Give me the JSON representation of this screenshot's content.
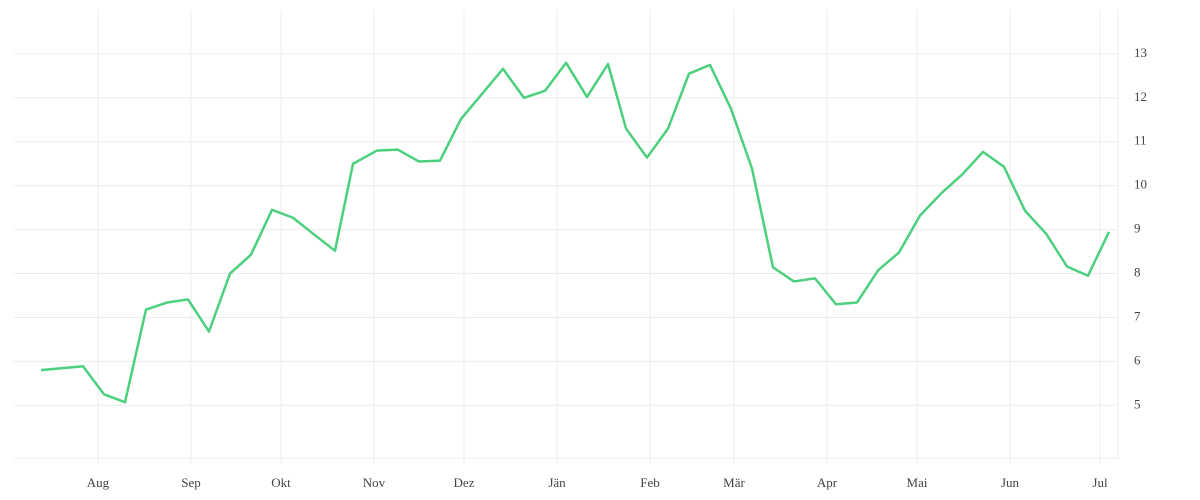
{
  "chart_data": {
    "type": "line",
    "x": [
      12,
      26,
      33,
      40,
      47,
      54,
      61,
      68,
      75,
      82,
      89,
      96,
      103,
      110,
      116,
      124,
      131,
      138,
      145,
      152,
      159,
      166,
      173,
      180,
      187,
      194,
      201,
      207,
      214,
      221,
      228,
      235,
      242,
      249,
      256,
      263,
      270,
      277,
      284,
      291,
      298,
      305,
      312,
      319,
      326,
      333,
      340,
      347,
      354,
      361,
      368
    ],
    "series": [
      {
        "color": "#4cd07d",
        "values": [
          5.8,
          5.89,
          5.25,
          5.07,
          7.18,
          7.34,
          7.41,
          6.68,
          8.0,
          8.43,
          9.45,
          9.27,
          8.89,
          8.52,
          10.5,
          10.8,
          10.82,
          10.55,
          10.57,
          11.52,
          12.09,
          12.66,
          12.0,
          12.16,
          12.8,
          12.02,
          12.77,
          11.3,
          10.64,
          11.3,
          12.55,
          12.75,
          11.75,
          10.39,
          8.14,
          7.82,
          7.89,
          7.3,
          7.34,
          8.07,
          8.48,
          9.32,
          9.82,
          10.25,
          10.77,
          10.43,
          9.43,
          8.91,
          8.16,
          7.95,
          8.95
        ]
      }
    ],
    "xlim": [
      3,
      371
    ],
    "xticks": [
      {
        "value": 31,
        "label": "Aug"
      },
      {
        "value": 62,
        "label": "Sep"
      },
      {
        "value": 92,
        "label": "Okt"
      },
      {
        "value": 123,
        "label": "Nov"
      },
      {
        "value": 153,
        "label": "Dez"
      },
      {
        "value": 184,
        "label": "Jän"
      },
      {
        "value": 215,
        "label": "Feb"
      },
      {
        "value": 243,
        "label": "Mär"
      },
      {
        "value": 274,
        "label": "Apr"
      },
      {
        "value": 304,
        "label": "Mai"
      },
      {
        "value": 335,
        "label": "Jun"
      },
      {
        "value": 365,
        "label": "Jul"
      }
    ],
    "ylim": [
      3.8,
      14
    ],
    "yticks": [
      5,
      6,
      7,
      8,
      9,
      10,
      11,
      12,
      13
    ],
    "grid": true
  }
}
